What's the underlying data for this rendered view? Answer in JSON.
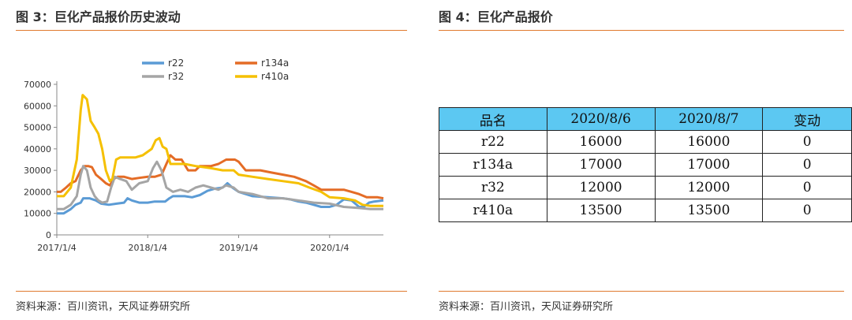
{
  "left_panel": {
    "title": "图 3：巨化产品报价历史波动",
    "source": "资料来源：百川资讯，天风证券研究所"
  },
  "right_panel": {
    "title": "图 4：巨化产品报价",
    "source": "资料来源：百川资讯，天风证券研究所"
  },
  "colors": {
    "accent_rule": "#e07a2e",
    "table_header": "#5cc8f2"
  },
  "chart_data": {
    "type": "line",
    "title": "",
    "xlabel": "",
    "ylabel": "",
    "ylim": [
      0,
      70000
    ],
    "yticks": [
      0,
      10000,
      20000,
      30000,
      40000,
      50000,
      60000,
      70000
    ],
    "ytick_labels": [
      "0",
      "10000",
      "20000",
      "30000",
      "40000",
      "50000",
      "60000",
      "70000"
    ],
    "xticks": [
      "2017-01-04",
      "2018-01-04",
      "2019-01-04",
      "2020-01-04"
    ],
    "xtick_labels": [
      "2017/1/4",
      "2018/1/4",
      "2019/1/4",
      "2020/1/4"
    ],
    "xlim": [
      "2017-01-04",
      "2020-08-07"
    ],
    "grid": false,
    "legend": "top",
    "series": [
      {
        "name": "r22",
        "color": "#5b9bd5",
        "points": [
          [
            "2017-01-04",
            10000
          ],
          [
            "2017-02-01",
            10000
          ],
          [
            "2017-03-01",
            12000
          ],
          [
            "2017-03-20",
            14000
          ],
          [
            "2017-04-10",
            15000
          ],
          [
            "2017-04-20",
            17000
          ],
          [
            "2017-05-15",
            17000
          ],
          [
            "2017-06-10",
            16000
          ],
          [
            "2017-07-01",
            14500
          ],
          [
            "2017-08-01",
            14000
          ],
          [
            "2017-09-01",
            14500
          ],
          [
            "2017-10-01",
            15000
          ],
          [
            "2017-10-15",
            17000
          ],
          [
            "2017-11-01",
            16000
          ],
          [
            "2017-12-01",
            15000
          ],
          [
            "2018-01-04",
            15000
          ],
          [
            "2018-02-01",
            15500
          ],
          [
            "2018-03-15",
            15500
          ],
          [
            "2018-04-01",
            17000
          ],
          [
            "2018-04-15",
            18000
          ],
          [
            "2018-06-01",
            18000
          ],
          [
            "2018-07-01",
            17500
          ],
          [
            "2018-08-01",
            18500
          ],
          [
            "2018-09-01",
            20500
          ],
          [
            "2018-10-01",
            21500
          ],
          [
            "2018-11-01",
            22000
          ],
          [
            "2018-11-20",
            24000
          ],
          [
            "2018-12-10",
            22000
          ],
          [
            "2019-01-04",
            20000
          ],
          [
            "2019-02-01",
            19000
          ],
          [
            "2019-03-01",
            18000
          ],
          [
            "2019-05-01",
            17500
          ],
          [
            "2019-07-01",
            17000
          ],
          [
            "2019-08-01",
            16500
          ],
          [
            "2019-09-01",
            15500
          ],
          [
            "2019-10-01",
            15000
          ],
          [
            "2019-11-01",
            14000
          ],
          [
            "2019-12-01",
            13000
          ],
          [
            "2020-01-04",
            13000
          ],
          [
            "2020-02-01",
            14000
          ],
          [
            "2020-03-01",
            16500
          ],
          [
            "2020-04-01",
            16000
          ],
          [
            "2020-05-01",
            13000
          ],
          [
            "2020-05-20",
            13000
          ],
          [
            "2020-06-10",
            15000
          ],
          [
            "2020-07-01",
            15500
          ],
          [
            "2020-08-07",
            16000
          ]
        ]
      },
      {
        "name": "r134a",
        "color": "#e46c26",
        "points": [
          [
            "2017-01-04",
            20000
          ],
          [
            "2017-01-20",
            20000
          ],
          [
            "2017-02-10",
            22000
          ],
          [
            "2017-03-01",
            24000
          ],
          [
            "2017-03-20",
            25000
          ],
          [
            "2017-04-10",
            30000
          ],
          [
            "2017-04-25",
            32000
          ],
          [
            "2017-05-10",
            32000
          ],
          [
            "2017-05-25",
            31500
          ],
          [
            "2017-06-10",
            28000
          ],
          [
            "2017-07-01",
            26000
          ],
          [
            "2017-07-20",
            24000
          ],
          [
            "2017-08-05",
            23000
          ],
          [
            "2017-08-20",
            26000
          ],
          [
            "2017-09-05",
            27000
          ],
          [
            "2017-10-01",
            27000
          ],
          [
            "2017-11-01",
            26000
          ],
          [
            "2017-12-01",
            26500
          ],
          [
            "2018-01-04",
            27000
          ],
          [
            "2018-02-01",
            27000
          ],
          [
            "2018-03-01",
            28000
          ],
          [
            "2018-03-20",
            33000
          ],
          [
            "2018-04-05",
            37000
          ],
          [
            "2018-04-25",
            35000
          ],
          [
            "2018-05-20",
            35000
          ],
          [
            "2018-06-15",
            30000
          ],
          [
            "2018-07-15",
            30000
          ],
          [
            "2018-08-01",
            32000
          ],
          [
            "2018-09-15",
            32000
          ],
          [
            "2018-10-15",
            33000
          ],
          [
            "2018-11-15",
            35000
          ],
          [
            "2018-12-20",
            35000
          ],
          [
            "2019-01-04",
            34000
          ],
          [
            "2019-02-01",
            30000
          ],
          [
            "2019-04-01",
            30000
          ],
          [
            "2019-05-15",
            29000
          ],
          [
            "2019-07-01",
            28000
          ],
          [
            "2019-08-15",
            27000
          ],
          [
            "2019-10-01",
            25000
          ],
          [
            "2019-11-01",
            23000
          ],
          [
            "2019-12-01",
            21000
          ],
          [
            "2020-01-04",
            21000
          ],
          [
            "2020-03-01",
            21000
          ],
          [
            "2020-04-01",
            20000
          ],
          [
            "2020-05-01",
            19000
          ],
          [
            "2020-06-01",
            17500
          ],
          [
            "2020-07-15",
            17500
          ],
          [
            "2020-08-07",
            17000
          ]
        ]
      },
      {
        "name": "r32",
        "color": "#a5a5a5",
        "points": [
          [
            "2017-01-04",
            12000
          ],
          [
            "2017-02-01",
            12000
          ],
          [
            "2017-03-01",
            14000
          ],
          [
            "2017-03-25",
            18000
          ],
          [
            "2017-04-10",
            28000
          ],
          [
            "2017-04-20",
            32000
          ],
          [
            "2017-05-05",
            30000
          ],
          [
            "2017-05-20",
            22000
          ],
          [
            "2017-06-05",
            18000
          ],
          [
            "2017-06-20",
            16000
          ],
          [
            "2017-07-05",
            15000
          ],
          [
            "2017-07-25",
            15500
          ],
          [
            "2017-08-10",
            22000
          ],
          [
            "2017-08-25",
            27000
          ],
          [
            "2017-09-15",
            26000
          ],
          [
            "2017-10-10",
            25000
          ],
          [
            "2017-11-01",
            21000
          ],
          [
            "2017-12-01",
            24000
          ],
          [
            "2018-01-04",
            25000
          ],
          [
            "2018-01-25",
            31000
          ],
          [
            "2018-02-10",
            34000
          ],
          [
            "2018-02-28",
            30000
          ],
          [
            "2018-03-20",
            22000
          ],
          [
            "2018-04-15",
            20000
          ],
          [
            "2018-05-15",
            21000
          ],
          [
            "2018-06-15",
            20000
          ],
          [
            "2018-07-15",
            22000
          ],
          [
            "2018-08-15",
            23000
          ],
          [
            "2018-09-15",
            22000
          ],
          [
            "2018-10-15",
            21000
          ],
          [
            "2018-11-15",
            23000
          ],
          [
            "2018-12-15",
            22000
          ],
          [
            "2019-01-04",
            20000
          ],
          [
            "2019-03-01",
            19000
          ],
          [
            "2019-05-01",
            17000
          ],
          [
            "2019-07-01",
            17000
          ],
          [
            "2019-09-01",
            16000
          ],
          [
            "2019-11-01",
            15000
          ],
          [
            "2020-01-04",
            14500
          ],
          [
            "2020-03-01",
            13000
          ],
          [
            "2020-05-01",
            12500
          ],
          [
            "2020-06-15",
            12000
          ],
          [
            "2020-08-07",
            12000
          ]
        ]
      },
      {
        "name": "r410a",
        "color": "#f5c000",
        "points": [
          [
            "2017-01-04",
            18000
          ],
          [
            "2017-02-01",
            18000
          ],
          [
            "2017-03-01",
            22000
          ],
          [
            "2017-03-25",
            35000
          ],
          [
            "2017-04-10",
            58000
          ],
          [
            "2017-04-18",
            65000
          ],
          [
            "2017-05-05",
            63000
          ],
          [
            "2017-05-20",
            53000
          ],
          [
            "2017-06-05",
            50000
          ],
          [
            "2017-06-20",
            47000
          ],
          [
            "2017-07-05",
            40000
          ],
          [
            "2017-07-20",
            30000
          ],
          [
            "2017-08-05",
            25000
          ],
          [
            "2017-08-15",
            26000
          ],
          [
            "2017-08-30",
            35000
          ],
          [
            "2017-09-15",
            36000
          ],
          [
            "2017-11-15",
            36000
          ],
          [
            "2017-12-15",
            37000
          ],
          [
            "2018-01-20",
            40000
          ],
          [
            "2018-02-05",
            44000
          ],
          [
            "2018-02-20",
            45000
          ],
          [
            "2018-03-05",
            41000
          ],
          [
            "2018-03-20",
            40000
          ],
          [
            "2018-04-05",
            33000
          ],
          [
            "2018-06-01",
            33000
          ],
          [
            "2018-07-15",
            32000
          ],
          [
            "2018-09-15",
            31000
          ],
          [
            "2018-11-01",
            30000
          ],
          [
            "2018-12-15",
            30000
          ],
          [
            "2019-01-04",
            28000
          ],
          [
            "2019-03-01",
            27000
          ],
          [
            "2019-05-01",
            26000
          ],
          [
            "2019-07-01",
            25000
          ],
          [
            "2019-09-01",
            24000
          ],
          [
            "2019-10-15",
            22000
          ],
          [
            "2019-12-01",
            20000
          ],
          [
            "2020-01-04",
            17500
          ],
          [
            "2020-03-01",
            17000
          ],
          [
            "2020-04-15",
            16000
          ],
          [
            "2020-05-15",
            14000
          ],
          [
            "2020-06-15",
            13500
          ],
          [
            "2020-08-07",
            13500
          ]
        ]
      }
    ]
  },
  "price_table": {
    "headers": [
      "品名",
      "2020/8/6",
      "2020/8/7",
      "变动"
    ],
    "rows": [
      [
        "r22",
        "16000",
        "16000",
        "0"
      ],
      [
        "r134a",
        "17000",
        "17000",
        "0"
      ],
      [
        "r32",
        "12000",
        "12000",
        "0"
      ],
      [
        "r410a",
        "13500",
        "13500",
        "0"
      ]
    ]
  }
}
